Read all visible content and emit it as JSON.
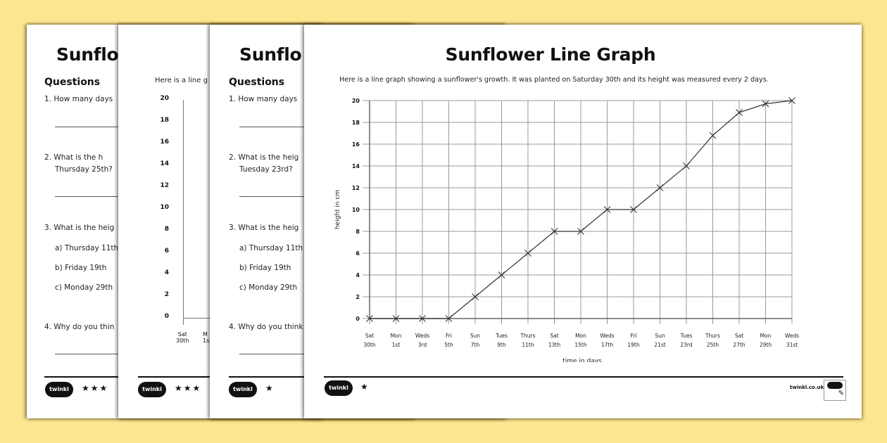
{
  "background_color": "#fce68f",
  "sheets": [
    {
      "title_partial": "Sunflo",
      "questions_heading": "Questions",
      "q1": "1. How many days",
      "q2a": "2. What is the h",
      "q2b": "Thursday 25th?",
      "q3": "3. What is the heig",
      "q3a": "a) Thursday 11th",
      "q3b": "b) Friday 19th",
      "q3c": "c) Monday 29th",
      "q4": "4. Why do you thin",
      "logo": "twinkl",
      "stars": "★★★"
    },
    {
      "intro_partial": "Here is a line g",
      "y_ticks": [
        "20",
        "18",
        "16",
        "14",
        "12",
        "10",
        "8",
        "6",
        "4",
        "2",
        "0"
      ],
      "x_first_day": "Sat",
      "x_first_date": "30th",
      "x_second_day": "M",
      "x_second_date": "1s",
      "logo": "twinkl",
      "stars": "★★★"
    },
    {
      "title_partial": "Sunflo",
      "questions_heading": "Questions",
      "q1": "1. How many days",
      "q2a": "2. What is the heig",
      "q2b": "Tuesday 23rd?",
      "q3": "3. What is the heig",
      "q3a": "a) Thursday 11th",
      "q3b": "b) Friday 19th",
      "q3c": "c) Monday 29th",
      "q4": "4. Why do you think",
      "logo": "twinkl",
      "stars": "★"
    },
    {
      "title": "Sunflower Line Graph",
      "intro": "Here is a line graph showing a sunflower's growth. It was planted on Saturday 30th and its height was measured every 2 days.",
      "logo": "twinkl",
      "stars": "★",
      "footer_url": "twinkl.co.uk"
    }
  ],
  "chart_data": {
    "type": "line",
    "title": "Sunflower Line Graph",
    "xlabel": "time in days",
    "ylabel": "height in cm",
    "ylim": [
      0,
      20
    ],
    "y_ticks": [
      0,
      2,
      4,
      6,
      8,
      10,
      12,
      14,
      16,
      18,
      20
    ],
    "grid": true,
    "marker": "x",
    "categories": [
      {
        "day": "Sat",
        "date": "30th"
      },
      {
        "day": "Mon",
        "date": "1st"
      },
      {
        "day": "Weds",
        "date": "3rd"
      },
      {
        "day": "Fri",
        "date": "5th"
      },
      {
        "day": "Sun",
        "date": "7th"
      },
      {
        "day": "Tues",
        "date": "9th"
      },
      {
        "day": "Thurs",
        "date": "11th"
      },
      {
        "day": "Sat",
        "date": "13th"
      },
      {
        "day": "Mon",
        "date": "15th"
      },
      {
        "day": "Weds",
        "date": "17th"
      },
      {
        "day": "Fri",
        "date": "19th"
      },
      {
        "day": "Sun",
        "date": "21st"
      },
      {
        "day": "Tues",
        "date": "23rd"
      },
      {
        "day": "Thurs",
        "date": "25th"
      },
      {
        "day": "Sat",
        "date": "27th"
      },
      {
        "day": "Mon",
        "date": "29th"
      },
      {
        "day": "Weds",
        "date": "31st"
      }
    ],
    "values": [
      0,
      0,
      0,
      0,
      2,
      4,
      6,
      8,
      8,
      10,
      10,
      12,
      14,
      16.8,
      18.9,
      19.7,
      20
    ]
  }
}
